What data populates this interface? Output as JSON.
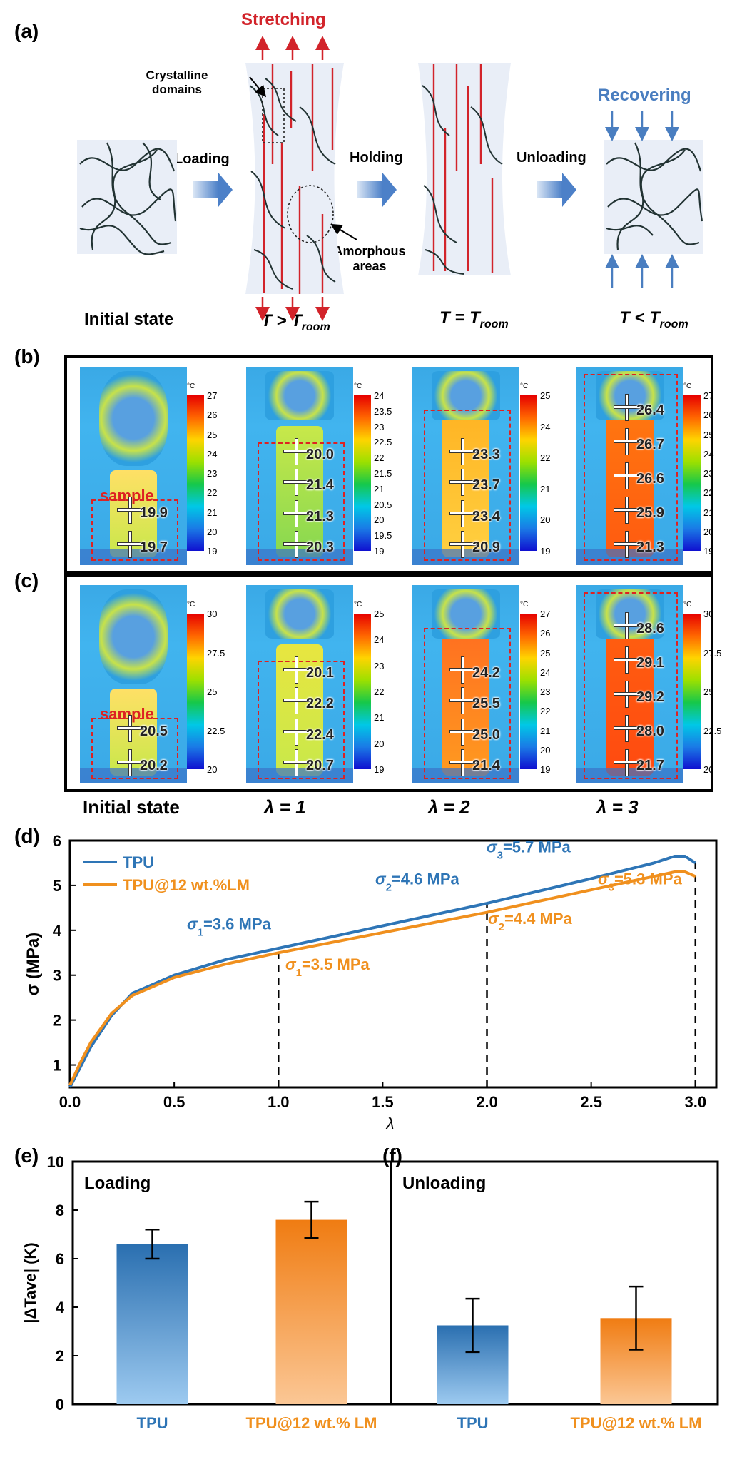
{
  "panel_a": {
    "label": "(a)",
    "stretching": "Stretching",
    "recovering": "Recovering",
    "crystalline": "Crystalline",
    "domains": "domains",
    "amorphous": "Amorphous",
    "areas": "areas",
    "loading": "Loading",
    "holding": "Holding",
    "unloading": "Unloading",
    "initial_state": "Initial state",
    "cond1": "T > T",
    "cond1_sub": "room",
    "cond2": "T = T",
    "cond2_sub": "room",
    "cond3": "T < T",
    "cond3_sub": "room"
  },
  "panel_b": {
    "label": "(b)",
    "unit": "°C",
    "sample_label": "sample",
    "images": [
      {
        "colorbar": [
          "27",
          "26",
          "25",
          "24",
          "23",
          "22",
          "21",
          "20",
          "19"
        ],
        "temps": [
          "19.9",
          "19.7"
        ]
      },
      {
        "colorbar": [
          "24",
          "23.5",
          "23",
          "22.5",
          "22",
          "21.5",
          "21",
          "20.5",
          "20",
          "19.5",
          "19"
        ],
        "temps": [
          "20.0",
          "21.4",
          "21.3",
          "20.3"
        ]
      },
      {
        "colorbar": [
          "25",
          "24",
          "22",
          "21",
          "20",
          "19"
        ],
        "temps": [
          "23.3",
          "23.7",
          "23.4",
          "20.9"
        ]
      },
      {
        "colorbar": [
          "27",
          "26",
          "25",
          "24",
          "23",
          "22",
          "21",
          "20",
          "19"
        ],
        "temps": [
          "26.4",
          "26.7",
          "26.6",
          "25.9",
          "21.3"
        ]
      }
    ]
  },
  "panel_c": {
    "label": "(c)",
    "unit": "°C",
    "sample_label": "sample",
    "images": [
      {
        "colorbar": [
          "30",
          "27.5",
          "25",
          "22.5",
          "20"
        ],
        "temps": [
          "20.5",
          "20.2"
        ]
      },
      {
        "colorbar": [
          "25",
          "24",
          "23",
          "22",
          "21",
          "20",
          "19"
        ],
        "temps": [
          "20.1",
          "22.2",
          "22.4",
          "20.7"
        ]
      },
      {
        "colorbar": [
          "27",
          "26",
          "25",
          "24",
          "23",
          "22",
          "21",
          "20",
          "19"
        ],
        "temps": [
          "24.2",
          "25.5",
          "25.0",
          "21.4"
        ]
      },
      {
        "colorbar": [
          "30",
          "27.5",
          "25",
          "22.5",
          "20"
        ],
        "temps": [
          "28.6",
          "29.1",
          "29.2",
          "28.0",
          "21.7"
        ]
      }
    ],
    "captions": [
      "Initial state",
      "λ = 1",
      "λ = 2",
      "λ = 3"
    ]
  },
  "chart_data": [
    {
      "type": "line",
      "panel": "(d)",
      "xlabel": "λ",
      "ylabel": "σ (MPa)",
      "xlim": [
        0,
        3.1
      ],
      "ylim": [
        0.5,
        6
      ],
      "xticks": [
        "0.0",
        "0.5",
        "1.0",
        "1.5",
        "2.0",
        "2.5",
        "3.0"
      ],
      "yticks": [
        "1",
        "2",
        "3",
        "4",
        "5",
        "6"
      ],
      "colors": {
        "TPU": "#2e75b6",
        "TPU@12 wt.%LM": "#f0901e"
      },
      "series": [
        {
          "name": "TPU",
          "x": [
            0,
            0.05,
            0.1,
            0.2,
            0.3,
            0.5,
            0.75,
            1.0,
            1.5,
            2.0,
            2.5,
            2.8,
            2.9,
            2.95,
            3.0
          ],
          "values": [
            0.5,
            0.95,
            1.4,
            2.1,
            2.6,
            3.0,
            3.35,
            3.6,
            4.1,
            4.6,
            5.15,
            5.5,
            5.65,
            5.65,
            5.5
          ]
        },
        {
          "name": "TPU@12 wt.%LM",
          "x": [
            0,
            0.05,
            0.1,
            0.2,
            0.3,
            0.5,
            0.75,
            1.0,
            1.5,
            2.0,
            2.5,
            2.8,
            2.9,
            2.95,
            3.0
          ],
          "values": [
            0.55,
            1.05,
            1.5,
            2.15,
            2.55,
            2.95,
            3.25,
            3.5,
            3.95,
            4.4,
            4.9,
            5.2,
            5.3,
            5.3,
            5.2
          ]
        }
      ],
      "dashed_lines_at_x": [
        1.0,
        2.0,
        3.0
      ],
      "annotations": [
        {
          "text": "σ1=3.6 MPa",
          "base": "σ",
          "sub": "1",
          "rest": "=3.6 MPa",
          "series": "TPU"
        },
        {
          "text": "σ2=4.6 MPa",
          "base": "σ",
          "sub": "2",
          "rest": "=4.6 MPa",
          "series": "TPU"
        },
        {
          "text": "σ3=5.7 MPa",
          "base": "σ",
          "sub": "3",
          "rest": "=5.7 MPa",
          "series": "TPU"
        },
        {
          "text": "σ1=3.5 MPa",
          "base": "σ",
          "sub": "1",
          "rest": "=3.5 MPa",
          "series": "TPU@12 wt.%LM"
        },
        {
          "text": "σ2=4.4 MPa",
          "base": "σ",
          "sub": "2",
          "rest": "=4.4 MPa",
          "series": "TPU@12 wt.%LM"
        },
        {
          "text": "σ3=5.3 MPa",
          "base": "σ",
          "sub": "3",
          "rest": "=5.3 MPa",
          "series": "TPU@12 wt.%LM"
        }
      ],
      "legend": [
        "TPU",
        "TPU@12 wt.%LM"
      ]
    },
    {
      "type": "bar",
      "panel": "(e)",
      "title": "Loading",
      "ylabel": "|ΔTave| (K)",
      "ylim": [
        0,
        10
      ],
      "yticks": [
        "0",
        "2",
        "4",
        "6",
        "8",
        "10"
      ],
      "categories": [
        "TPU",
        "TPU@12 wt.% LM"
      ],
      "values": [
        6.6,
        7.6
      ],
      "errors": [
        0.6,
        0.75
      ]
    },
    {
      "type": "bar",
      "panel": "(f)",
      "title": "Unloading",
      "ylim": [
        0,
        10
      ],
      "categories": [
        "TPU",
        "TPU@12 wt.% LM"
      ],
      "values": [
        3.25,
        3.55
      ],
      "errors": [
        1.1,
        1.3
      ]
    }
  ]
}
